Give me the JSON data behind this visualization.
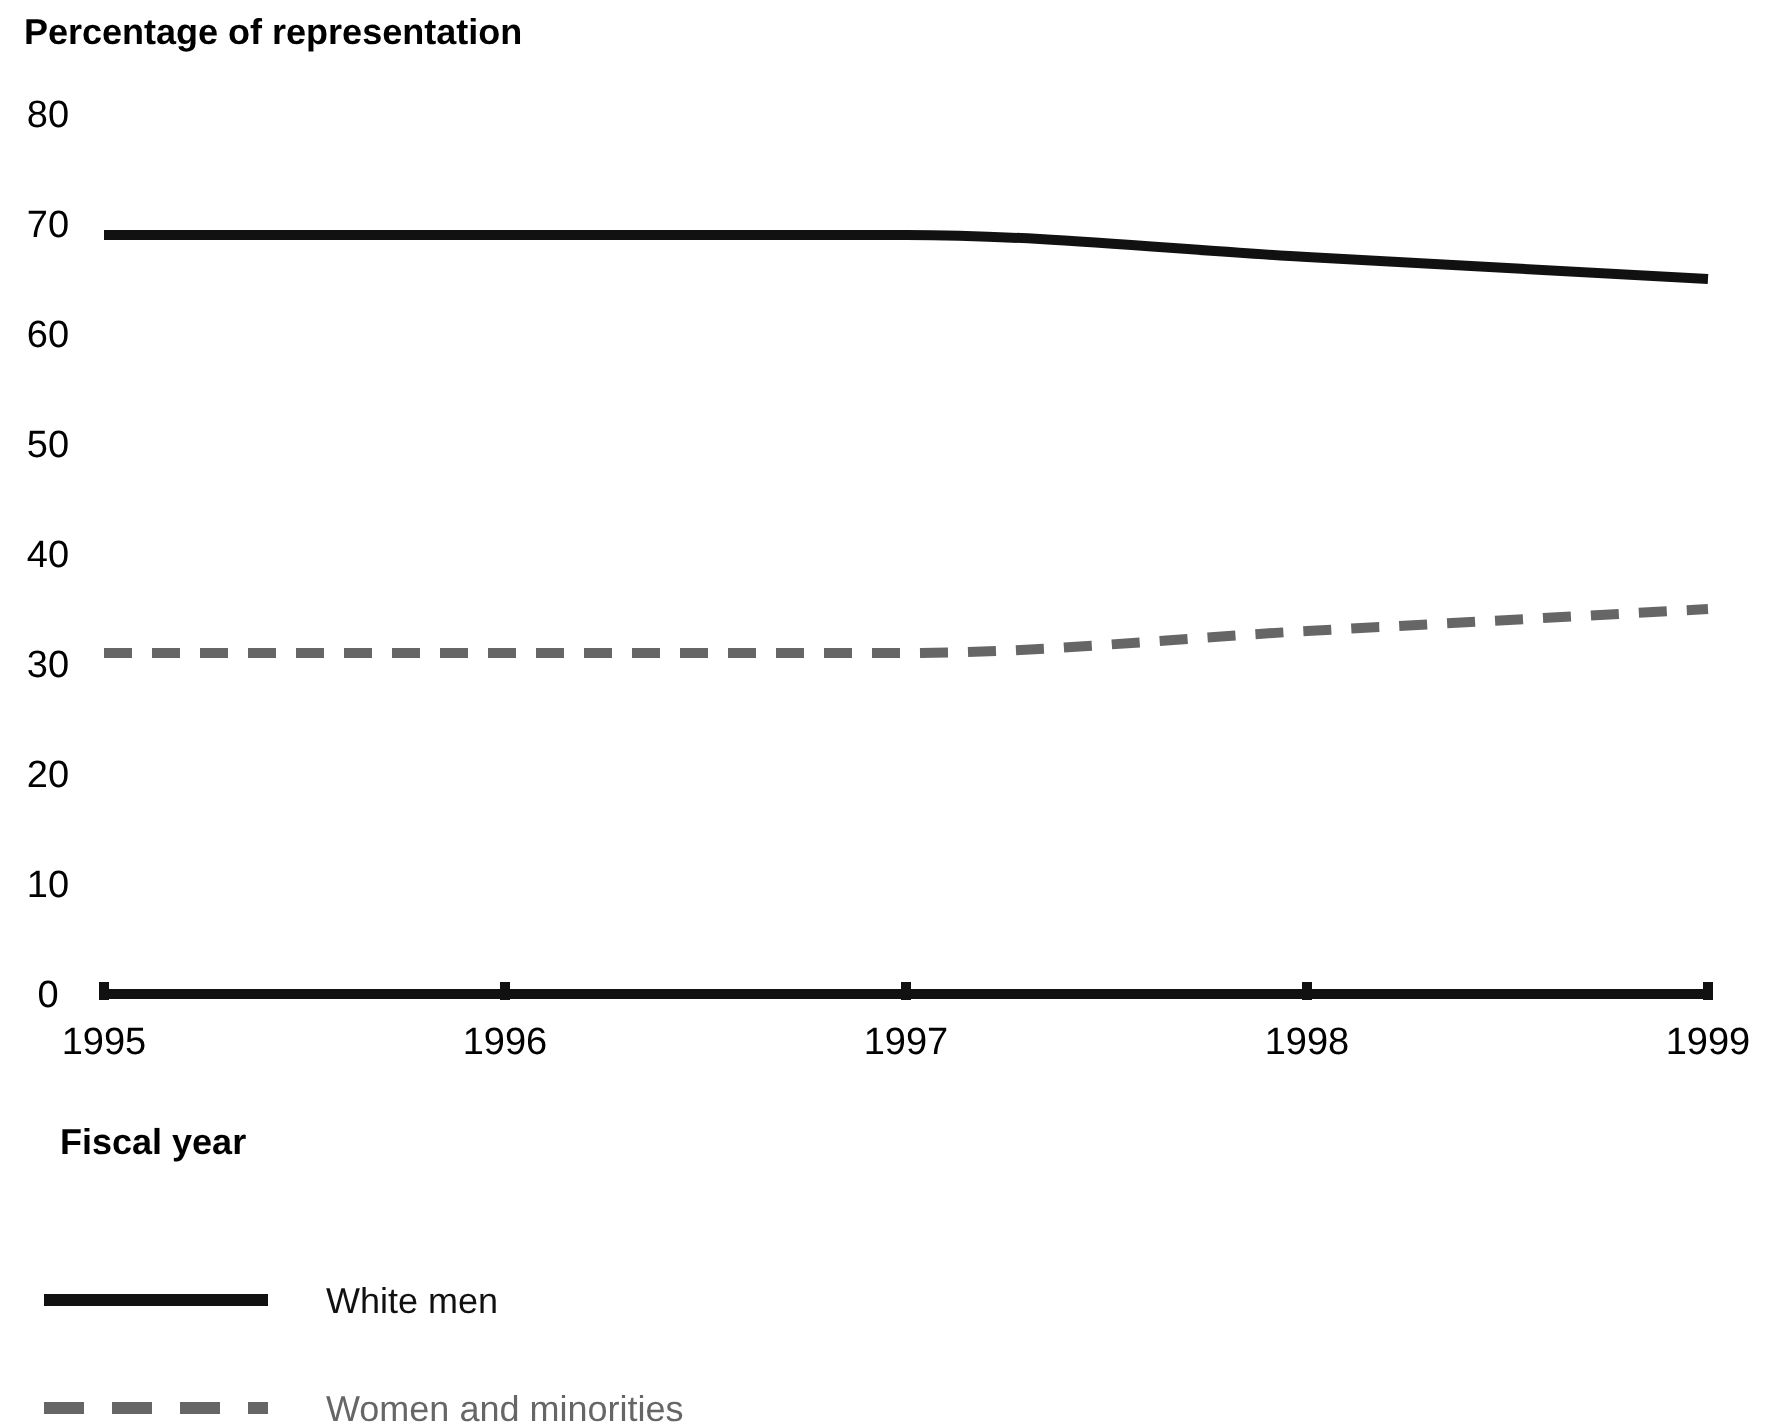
{
  "chart_data": {
    "type": "line",
    "ylabel": "Percentage of representation",
    "xlabel": "Fiscal year",
    "x": [
      1995,
      1996,
      1997,
      1998,
      1999
    ],
    "series": [
      {
        "name": "White men",
        "color": "#111111",
        "values": [
          69,
          69,
          69,
          67,
          65
        ],
        "line_style": "solid"
      },
      {
        "name": "Women and minorities",
        "color": "#666666",
        "values": [
          31,
          31,
          31,
          33,
          35
        ],
        "line_style": "dashed"
      }
    ],
    "xlim": [
      1995,
      1999
    ],
    "xticks": [
      1995,
      1996,
      1997,
      1998,
      1999
    ],
    "ylim": [
      0,
      80
    ],
    "yticks": [
      0,
      10,
      20,
      30,
      40,
      50,
      60,
      70,
      80
    ],
    "grid": false,
    "legend": "bottom",
    "marker": "none"
  }
}
